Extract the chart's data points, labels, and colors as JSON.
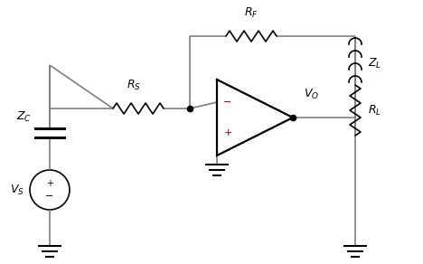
{
  "bg_color": "#ffffff",
  "line_color": "#7f7f7f",
  "dark_color": "#000000",
  "label_color": "#000000",
  "plus_minus_color": "#8B0000",
  "figsize": [
    4.68,
    2.92
  ],
  "dpi": 100
}
